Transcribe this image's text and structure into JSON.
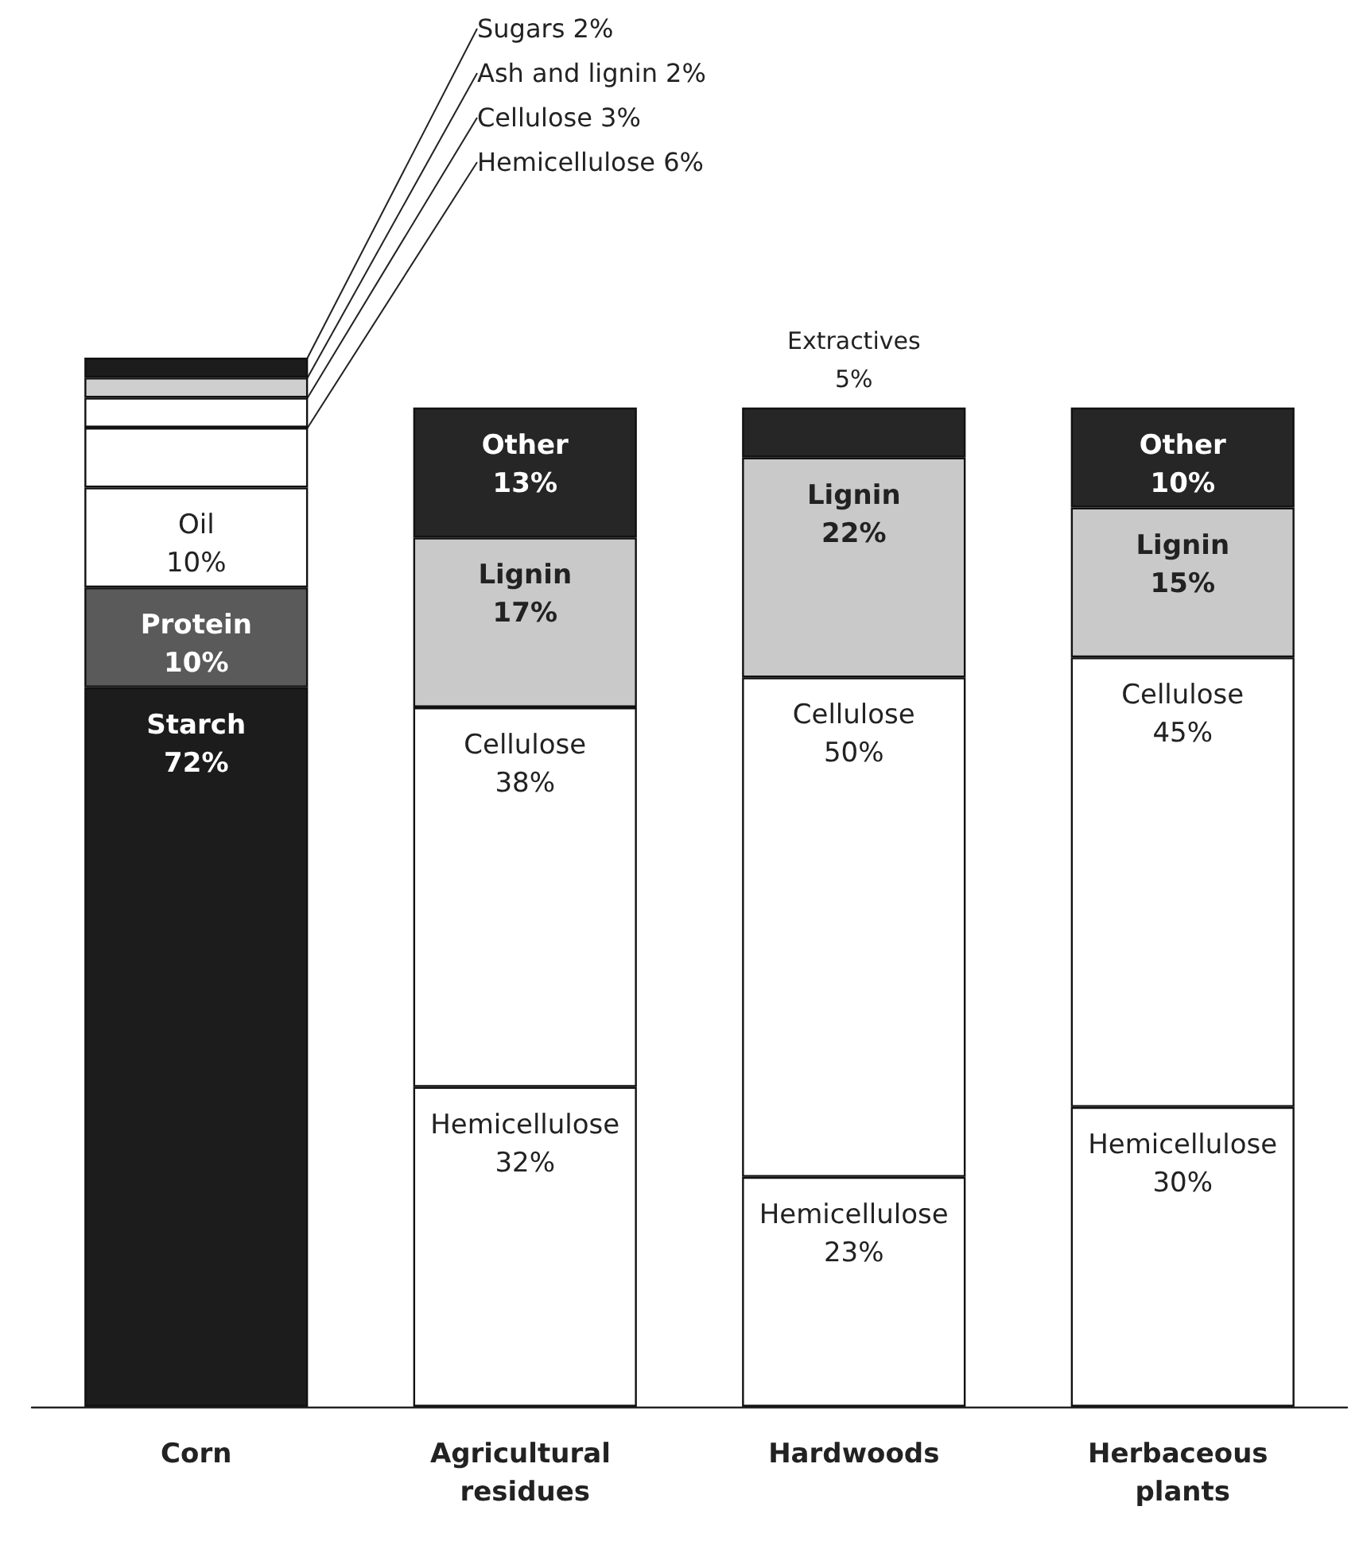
{
  "chart_data": {
    "type": "bar",
    "stacked": true,
    "categories": [
      "Corn",
      "Agricultural residues",
      "Hardwoods",
      "Herbaceous plants"
    ],
    "series": [
      {
        "values": [
          72,
          32,
          23,
          30
        ],
        "colors": [
          "#1c1c1c",
          "#ffffff",
          "#ffffff",
          "#ffffff"
        ],
        "value_labels": [
          "Starch\n72%",
          "Hemicellulose\n32%",
          "Hemicellulose\n23%",
          "Hemicellulose\n30%"
        ]
      },
      {
        "values": [
          10,
          38,
          50,
          45
        ],
        "colors": [
          "#5a5a5a",
          "#ffffff",
          "#ffffff",
          "#ffffff"
        ],
        "value_labels": [
          "Protein\n10%",
          "Cellulose\n38%",
          "Cellulose\n50%",
          "Cellulose\n45%"
        ]
      },
      {
        "values": [
          10,
          17,
          22,
          15
        ],
        "colors": [
          "#ffffff",
          "#c9c9c9",
          "#c9c9c9",
          "#c9c9c9"
        ],
        "value_labels": [
          "Oil\n10%",
          "Lignin\n17%",
          "Lignin\n22%",
          "Lignin\n15%"
        ]
      },
      {
        "values": [
          6,
          13,
          5,
          10
        ],
        "colors": [
          "#ffffff",
          "#262626",
          "#262626",
          "#262626"
        ],
        "value_labels": [
          "Hemicellulose 6%",
          "Other\n13%",
          "Extractives\n5%",
          "Other\n10%"
        ]
      },
      {
        "values": [
          3,
          null,
          null,
          null
        ],
        "colors": [
          "#ffffff",
          null,
          null,
          null
        ],
        "value_labels": [
          "Cellulose 3%",
          null,
          null,
          null
        ]
      },
      {
        "values": [
          2,
          null,
          null,
          null
        ],
        "colors": [
          "#cfcfcf",
          null,
          null,
          null
        ],
        "value_labels": [
          "Ash and lignin 2%",
          null,
          null,
          null
        ]
      },
      {
        "values": [
          2,
          null,
          null,
          null
        ],
        "colors": [
          "#1c1c1c",
          null,
          null,
          null
        ],
        "value_labels": [
          "Sugars 2%",
          null,
          null,
          null
        ]
      }
    ]
  }
}
